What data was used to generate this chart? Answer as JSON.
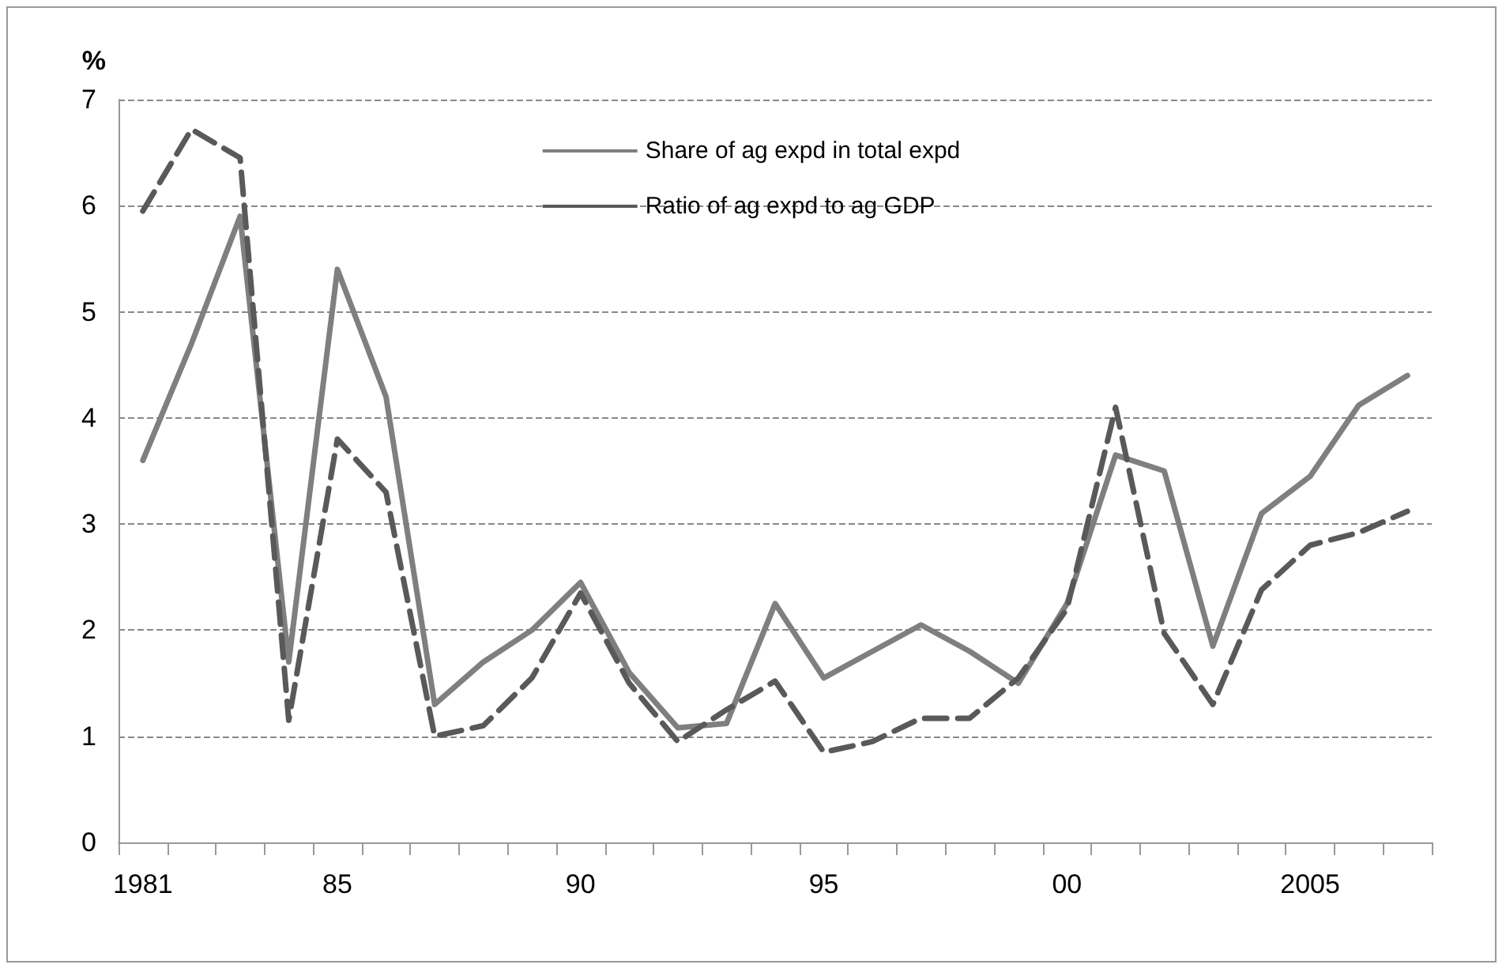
{
  "chart_data": {
    "type": "line",
    "ylabel": "%",
    "categories": [
      "1981",
      null,
      null,
      null,
      "85",
      null,
      null,
      null,
      null,
      "90",
      null,
      null,
      null,
      null,
      "95",
      null,
      null,
      null,
      null,
      "00",
      null,
      null,
      null,
      null,
      "2005",
      null,
      null
    ],
    "ylim": [
      0,
      7
    ],
    "yticks": [
      0,
      1,
      2,
      3,
      4,
      5,
      6,
      7
    ],
    "grid": "y",
    "legend": "top",
    "marker": "none",
    "series": [
      {
        "name": "Share of ag expd in total expd",
        "color": "#7f7f7f",
        "line_style": "solid",
        "values": [
          3.6,
          4.7,
          5.9,
          1.7,
          5.4,
          4.2,
          1.3,
          1.7,
          2.0,
          2.45,
          1.6,
          1.08,
          1.12,
          2.25,
          1.55,
          1.8,
          2.05,
          1.8,
          1.5,
          2.25,
          3.65,
          3.5,
          1.85,
          3.1,
          3.45,
          4.12,
          4.4
        ]
      },
      {
        "name": "Ratio of ag expd to ag GDP",
        "color": "#595959",
        "line_style": "dashed",
        "values": [
          5.95,
          6.72,
          6.45,
          1.15,
          3.8,
          3.3,
          1.0,
          1.1,
          1.55,
          2.35,
          1.5,
          0.95,
          1.25,
          1.52,
          0.85,
          0.95,
          1.17,
          1.17,
          1.55,
          2.2,
          4.1,
          1.97,
          1.3,
          2.38,
          2.8,
          2.92,
          3.12
        ]
      }
    ]
  }
}
